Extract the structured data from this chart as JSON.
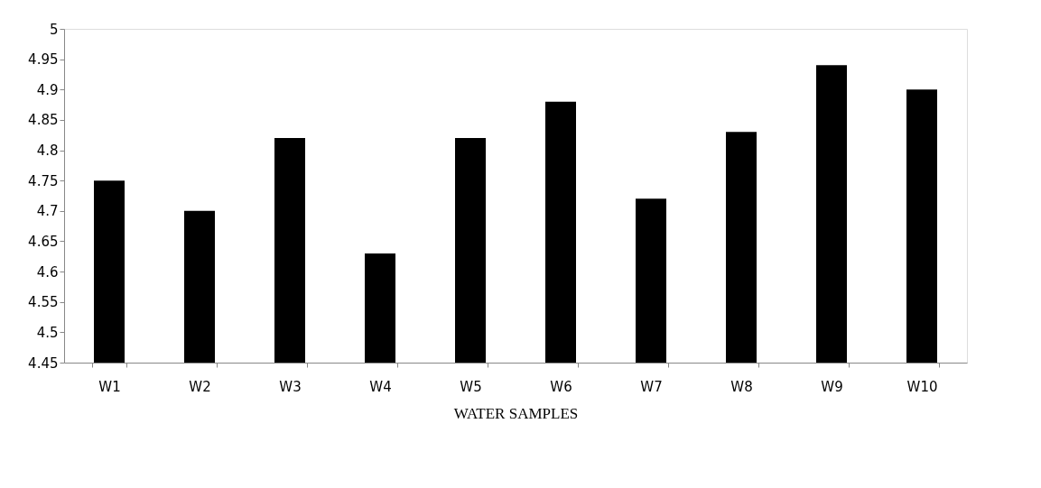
{
  "chart_data": {
    "type": "bar",
    "xlabel": "WATER SAMPLES",
    "categories": [
      "W1",
      "W2",
      "W3",
      "W4",
      "W5",
      "W6",
      "W7",
      "W8",
      "W9",
      "W10"
    ],
    "values": [
      4.75,
      4.7,
      4.82,
      4.63,
      4.82,
      4.88,
      4.72,
      4.83,
      4.94,
      4.9
    ],
    "color": "#000000",
    "ylim": [
      4.45,
      5
    ],
    "yticks": [
      4.45,
      4.5,
      4.55,
      4.6,
      4.65,
      4.7,
      4.75,
      4.8,
      4.85,
      4.9,
      4.95,
      5
    ],
    "grid": false
  }
}
